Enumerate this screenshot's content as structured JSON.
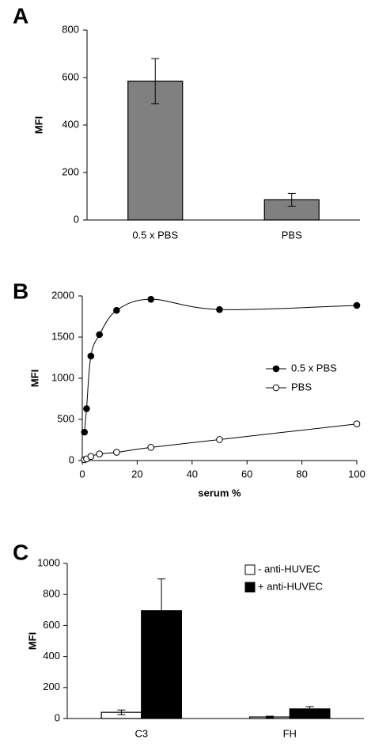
{
  "chart_data": [
    {
      "type": "bar",
      "panel": "A",
      "ylabel": "MFI",
      "categories": [
        "0.5 x PBS",
        "PBS"
      ],
      "values": [
        585,
        85
      ],
      "errors": [
        95,
        27
      ],
      "color": "#808080",
      "ylim": [
        0,
        800
      ],
      "yticks": [
        0,
        200,
        400,
        600,
        800
      ]
    },
    {
      "type": "line",
      "panel": "B",
      "ylabel": "MFI",
      "xlabel": "serum %",
      "legend": "right",
      "smooth": true,
      "series": [
        {
          "name": "0.5 x PBS",
          "color": "#000000",
          "marker_fill": "#000000",
          "x": [
            0.78,
            1.56,
            3.125,
            6.25,
            12.5,
            25,
            50,
            100
          ],
          "values": [
            345,
            630,
            1270,
            1530,
            1825,
            1960,
            1835,
            1885
          ]
        },
        {
          "name": "PBS",
          "color": "#000000",
          "marker_fill": "#ffffff",
          "x": [
            0.78,
            1.56,
            3.125,
            6.25,
            12.5,
            25,
            50,
            100
          ],
          "values": [
            10,
            20,
            50,
            80,
            100,
            160,
            255,
            445
          ]
        }
      ],
      "xlim": [
        0,
        100
      ],
      "xticks": [
        0,
        20,
        40,
        60,
        80,
        100
      ],
      "ylim": [
        0,
        2000
      ],
      "yticks": [
        0,
        500,
        1000,
        1500,
        2000
      ]
    },
    {
      "type": "bar",
      "panel": "C",
      "ylabel": "MFI",
      "legend": "upper right",
      "categories": [
        "C3",
        "FH"
      ],
      "series": [
        {
          "name": "- anti-HUVEC",
          "color": "#ffffff",
          "values": [
            40,
            10
          ],
          "errors": [
            15,
            5
          ]
        },
        {
          "name": "+ anti-HUVEC",
          "color": "#000000",
          "values": [
            695,
            62
          ],
          "errors": [
            205,
            15
          ]
        }
      ],
      "ylim": [
        0,
        1000
      ],
      "yticks": [
        0,
        200,
        400,
        600,
        800,
        1000
      ]
    }
  ]
}
